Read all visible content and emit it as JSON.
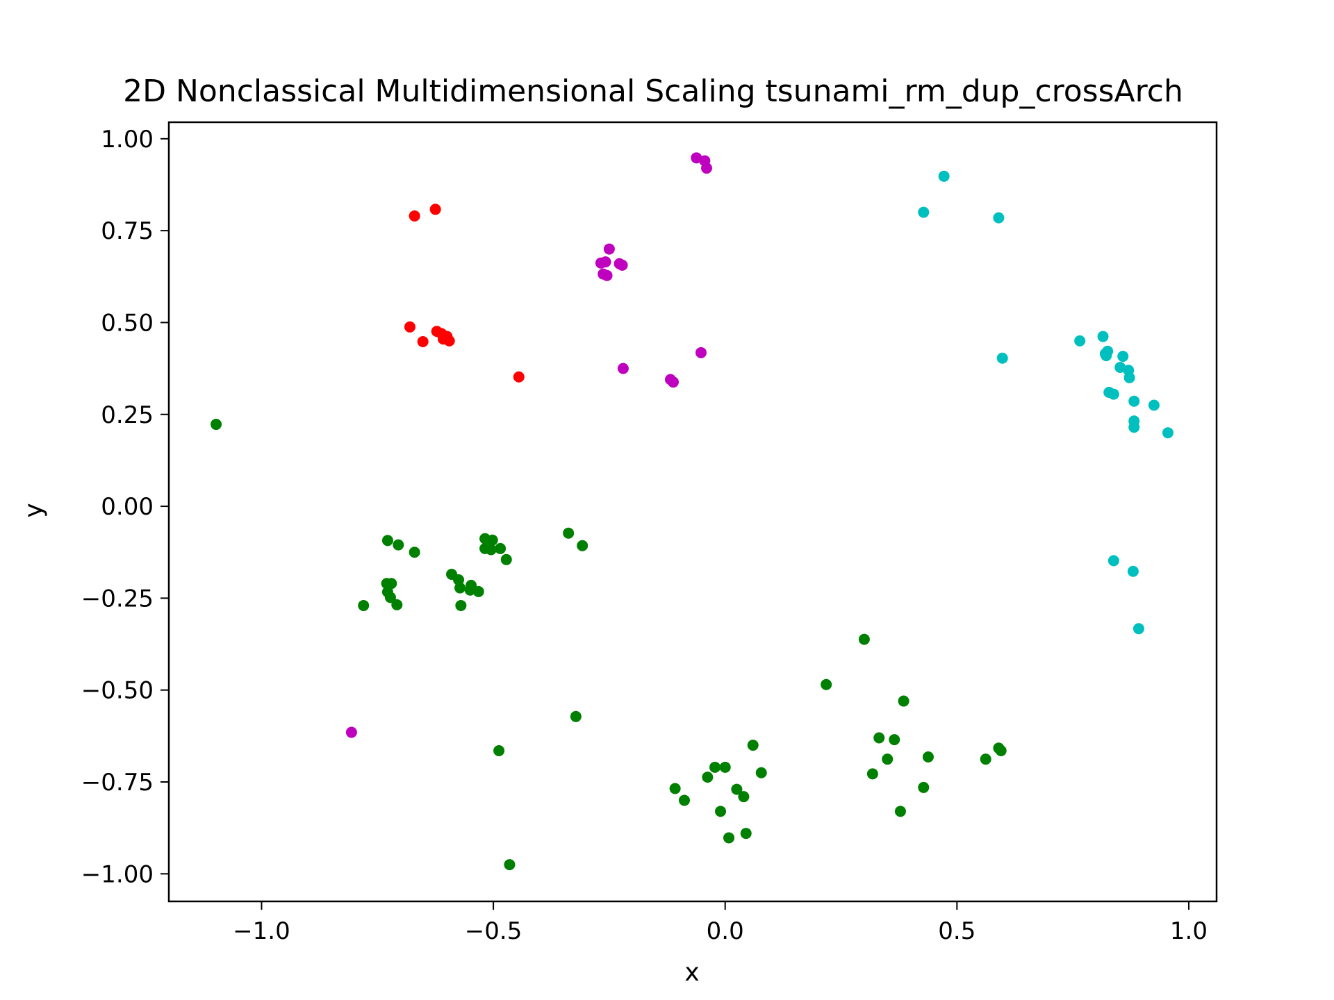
{
  "chart_data": {
    "type": "scatter",
    "title": "2D Nonclassical Multidimensional Scaling tsunami_rm_dup_crossArch",
    "xlabel": "x",
    "ylabel": "y",
    "xlim": [
      -1.2,
      1.06
    ],
    "ylim": [
      -1.075,
      1.045
    ],
    "grid": false,
    "xticks": [
      -1.0,
      -0.5,
      0.0,
      0.5,
      1.0
    ],
    "xtick_labels": [
      "−1.0",
      "−0.5",
      "0.0",
      "0.5",
      "1.0"
    ],
    "yticks": [
      1.0,
      0.75,
      0.5,
      0.25,
      0.0,
      -0.25,
      -0.5,
      -0.75,
      -1.0
    ],
    "ytick_labels": [
      "1.00",
      "0.75",
      "0.50",
      "0.25",
      "0.00",
      "−0.25",
      "−0.50",
      "−0.75",
      "−1.00"
    ],
    "series": [
      {
        "color": "#ff0000",
        "points": [
          [
            -0.67,
            0.79
          ],
          [
            -0.625,
            0.808
          ],
          [
            -0.68,
            0.488
          ],
          [
            -0.652,
            0.448
          ],
          [
            -0.622,
            0.476
          ],
          [
            -0.612,
            0.47
          ],
          [
            -0.608,
            0.455
          ],
          [
            -0.6,
            0.462
          ],
          [
            -0.595,
            0.45
          ],
          [
            -0.445,
            0.352
          ]
        ]
      },
      {
        "color": "#bf00bf",
        "points": [
          [
            -0.062,
            0.948
          ],
          [
            -0.044,
            0.94
          ],
          [
            -0.04,
            0.92
          ],
          [
            -0.25,
            0.7
          ],
          [
            -0.268,
            0.662
          ],
          [
            -0.258,
            0.665
          ],
          [
            -0.263,
            0.632
          ],
          [
            -0.255,
            0.628
          ],
          [
            -0.228,
            0.66
          ],
          [
            -0.222,
            0.656
          ],
          [
            -0.22,
            0.375
          ],
          [
            -0.052,
            0.418
          ],
          [
            -0.118,
            0.345
          ],
          [
            -0.112,
            0.338
          ],
          [
            -0.806,
            -0.615
          ]
        ]
      },
      {
        "color": "#00bfbf",
        "points": [
          [
            0.428,
            0.8
          ],
          [
            0.472,
            0.898
          ],
          [
            0.59,
            0.785
          ],
          [
            0.598,
            0.403
          ],
          [
            0.765,
            0.45
          ],
          [
            0.815,
            0.462
          ],
          [
            0.82,
            0.415
          ],
          [
            0.825,
            0.422
          ],
          [
            0.822,
            0.41
          ],
          [
            0.858,
            0.408
          ],
          [
            0.852,
            0.378
          ],
          [
            0.87,
            0.37
          ],
          [
            0.872,
            0.35
          ],
          [
            0.828,
            0.31
          ],
          [
            0.838,
            0.305
          ],
          [
            0.882,
            0.286
          ],
          [
            0.925,
            0.275
          ],
          [
            0.882,
            0.232
          ],
          [
            0.882,
            0.215
          ],
          [
            0.955,
            0.2
          ],
          [
            0.838,
            -0.148
          ],
          [
            0.88,
            -0.177
          ],
          [
            0.892,
            -0.333
          ]
        ]
      },
      {
        "color": "#008000",
        "points": [
          [
            -1.098,
            0.223
          ],
          [
            -0.728,
            -0.093
          ],
          [
            -0.705,
            -0.105
          ],
          [
            -0.67,
            -0.125
          ],
          [
            -0.73,
            -0.21
          ],
          [
            -0.72,
            -0.21
          ],
          [
            -0.728,
            -0.233
          ],
          [
            -0.722,
            -0.248
          ],
          [
            -0.708,
            -0.268
          ],
          [
            -0.78,
            -0.27
          ],
          [
            -0.59,
            -0.185
          ],
          [
            -0.575,
            -0.2
          ],
          [
            -0.572,
            -0.222
          ],
          [
            -0.548,
            -0.215
          ],
          [
            -0.55,
            -0.228
          ],
          [
            -0.532,
            -0.232
          ],
          [
            -0.57,
            -0.27
          ],
          [
            -0.518,
            -0.088
          ],
          [
            -0.51,
            -0.095
          ],
          [
            -0.502,
            -0.092
          ],
          [
            -0.518,
            -0.115
          ],
          [
            -0.505,
            -0.118
          ],
          [
            -0.485,
            -0.115
          ],
          [
            -0.472,
            -0.145
          ],
          [
            -0.338,
            -0.073
          ],
          [
            -0.308,
            -0.107
          ],
          [
            -0.322,
            -0.572
          ],
          [
            -0.488,
            -0.665
          ],
          [
            -0.465,
            -0.975
          ],
          [
            0.3,
            -0.362
          ],
          [
            0.218,
            -0.485
          ],
          [
            0.385,
            -0.53
          ],
          [
            0.332,
            -0.63
          ],
          [
            0.365,
            -0.635
          ],
          [
            0.35,
            -0.688
          ],
          [
            0.318,
            -0.728
          ],
          [
            0.438,
            -0.682
          ],
          [
            0.428,
            -0.765
          ],
          [
            0.378,
            -0.83
          ],
          [
            0.562,
            -0.688
          ],
          [
            0.59,
            -0.658
          ],
          [
            0.595,
            -0.665
          ],
          [
            0.06,
            -0.65
          ],
          [
            0.078,
            -0.725
          ],
          [
            -0.022,
            -0.71
          ],
          [
            0.0,
            -0.71
          ],
          [
            -0.038,
            -0.737
          ],
          [
            -0.108,
            -0.768
          ],
          [
            -0.088,
            -0.8
          ],
          [
            0.025,
            -0.77
          ],
          [
            0.04,
            -0.79
          ],
          [
            -0.01,
            -0.83
          ],
          [
            0.045,
            -0.89
          ],
          [
            0.008,
            -0.902
          ]
        ]
      }
    ]
  }
}
